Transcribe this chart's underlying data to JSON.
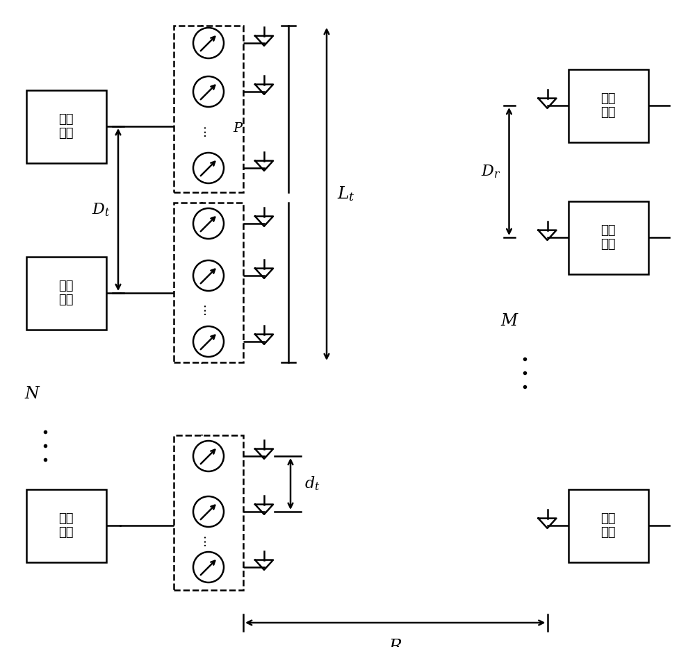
{
  "bg_color": "#ffffff",
  "line_color": "#000000",
  "fig_width": 10.0,
  "fig_height": 9.32,
  "dpi": 100,
  "rf_label": "射频\n链路",
  "P_label": "$P$",
  "Lt_label": "$L_t$",
  "Dt_label": "$D_t$",
  "dt_label": "$d_t$",
  "Dr_label": "$D_r$",
  "N_label": "$N$",
  "M_label": "$M$",
  "R_label": "$R$"
}
